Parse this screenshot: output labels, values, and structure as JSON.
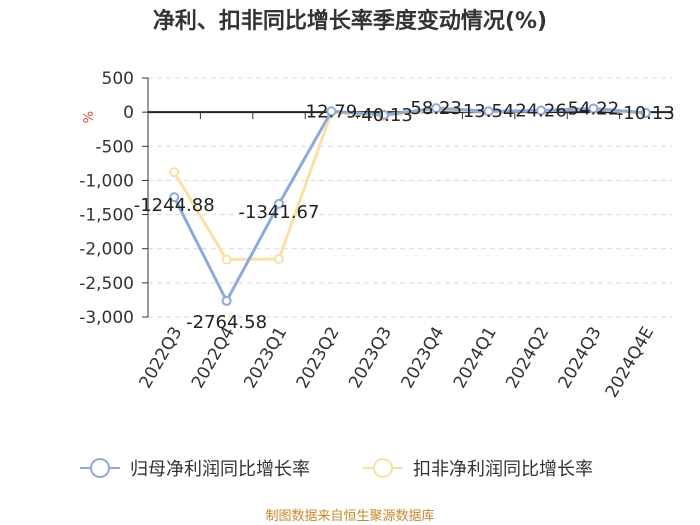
{
  "chart_data": {
    "type": "line",
    "title": "净利、扣非同比增长率季度变动情况(%)",
    "ylabel": "%",
    "categories": [
      "2022Q3",
      "2022Q4",
      "2023Q1",
      "2023Q2",
      "2023Q3",
      "2023Q4",
      "2024Q1",
      "2024Q2",
      "2024Q3",
      "2024Q4E"
    ],
    "ylim": [
      -3000,
      500
    ],
    "yticks": [
      500,
      0,
      -500,
      -1000,
      -1500,
      -2000,
      -2500,
      -3000
    ],
    "ytick_labels": [
      "500",
      "0",
      "-500",
      "-1,000",
      "-1,500",
      "-2,000",
      "-2,500",
      "-3,000"
    ],
    "grid": true,
    "legend_position": "bottom",
    "series": [
      {
        "name": "归母净利润同比增长率",
        "color": "#8eaadb",
        "values": [
          -1244.88,
          -2764.58,
          -1341.67,
          12.79,
          -40.13,
          58.23,
          13.54,
          24.26,
          54.22,
          -10.13
        ],
        "labels": [
          "-1244.88",
          "-2764.58",
          "-1341.67",
          "12.79",
          "-40.13",
          "58.23",
          "13.54",
          "24.26",
          "54.22",
          "-10.13"
        ]
      },
      {
        "name": "扣非净利润同比增长率",
        "color": "#fbe0a6",
        "values": [
          -880,
          -2160,
          -2150,
          -5,
          -60,
          40,
          5,
          20,
          45,
          -20
        ]
      }
    ],
    "source": "制图数据来自恒生聚源数据库"
  }
}
